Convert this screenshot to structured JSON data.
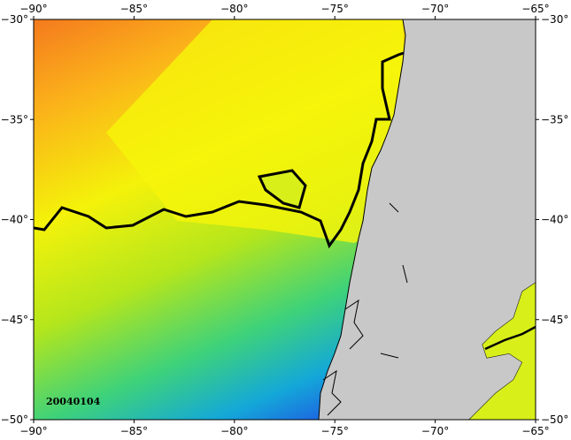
{
  "map": {
    "date_label": "20040104",
    "lon_ticks": [
      {
        "value": -90,
        "label": "−90°"
      },
      {
        "value": -85,
        "label": "−85°"
      },
      {
        "value": -80,
        "label": "−80°"
      },
      {
        "value": -75,
        "label": "−75°"
      },
      {
        "value": -70,
        "label": "−70°"
      },
      {
        "value": -65,
        "label": "−65°"
      }
    ],
    "lat_ticks": [
      {
        "value": -30,
        "label": "−30°"
      },
      {
        "value": -35,
        "label": "−35°"
      },
      {
        "value": -40,
        "label": "−40°"
      },
      {
        "value": -45,
        "label": "−45°"
      },
      {
        "value": -50,
        "label": "−50°"
      }
    ],
    "lon_range": [
      -90,
      -65
    ],
    "lat_range": [
      -30,
      -50
    ]
  }
}
